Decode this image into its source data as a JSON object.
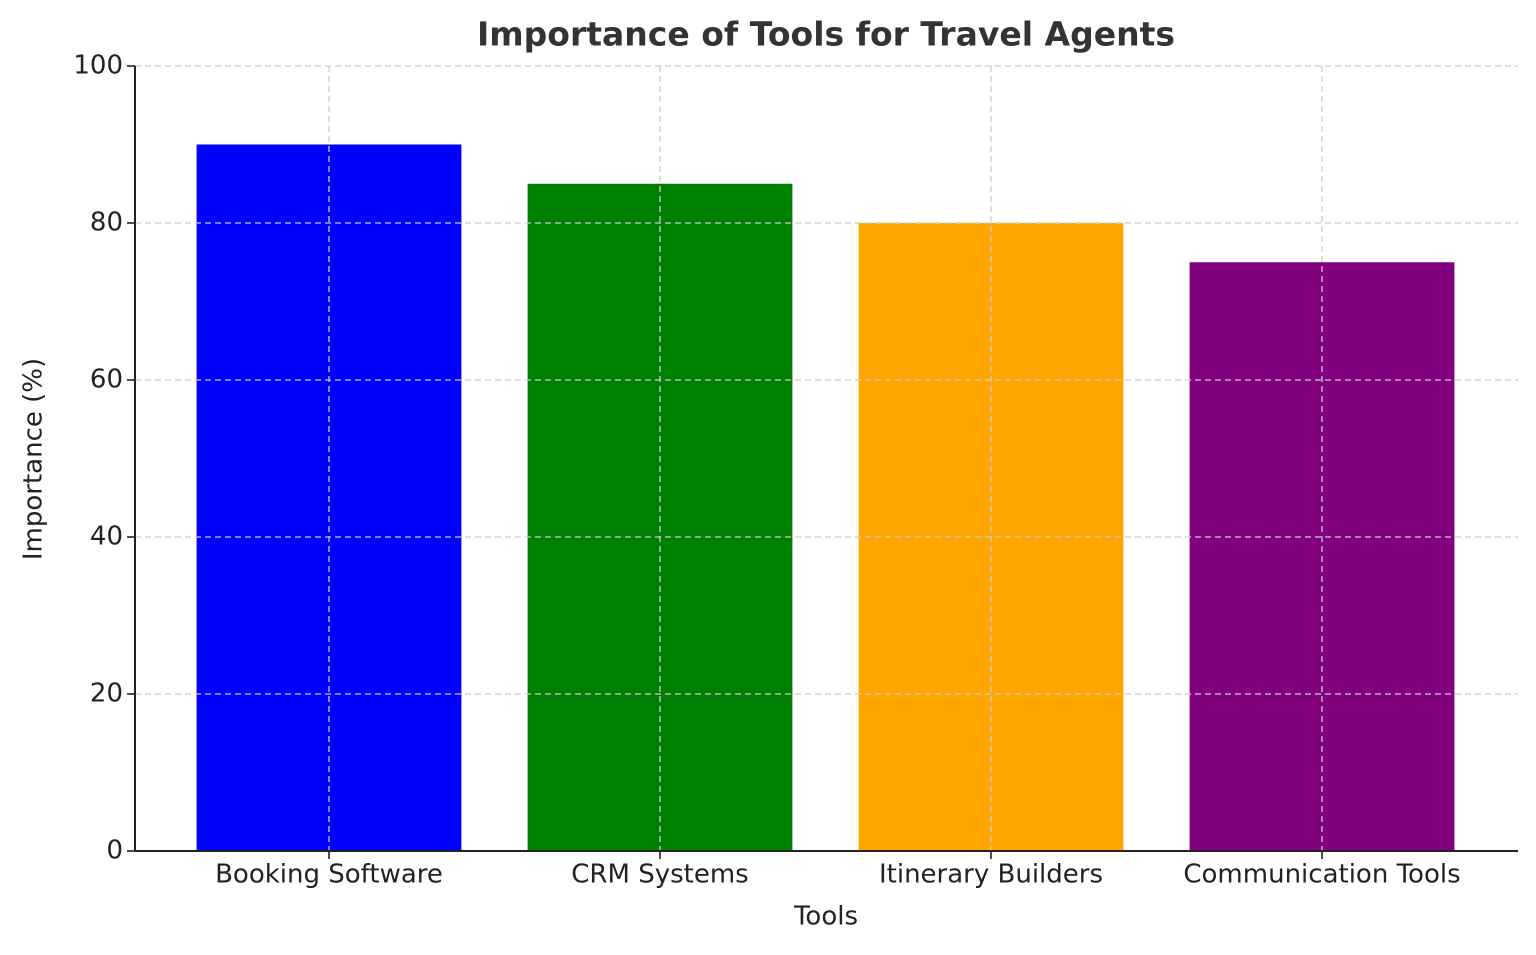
{
  "chart_data": {
    "type": "bar",
    "title": "Importance of Tools for Travel Agents",
    "x_label": "Tools",
    "y_label": "Importance (%)",
    "categories": [
      "Booking Software",
      "CRM Systems",
      "Itinerary Builders",
      "Communication Tools"
    ],
    "values": [
      90,
      85,
      80,
      75
    ],
    "colors": [
      "#0000ff",
      "#008000",
      "#ffa500",
      "#800080"
    ],
    "ylim": [
      0,
      100
    ],
    "yticks": [
      0,
      20,
      40,
      60,
      80,
      100
    ],
    "grid": true
  }
}
